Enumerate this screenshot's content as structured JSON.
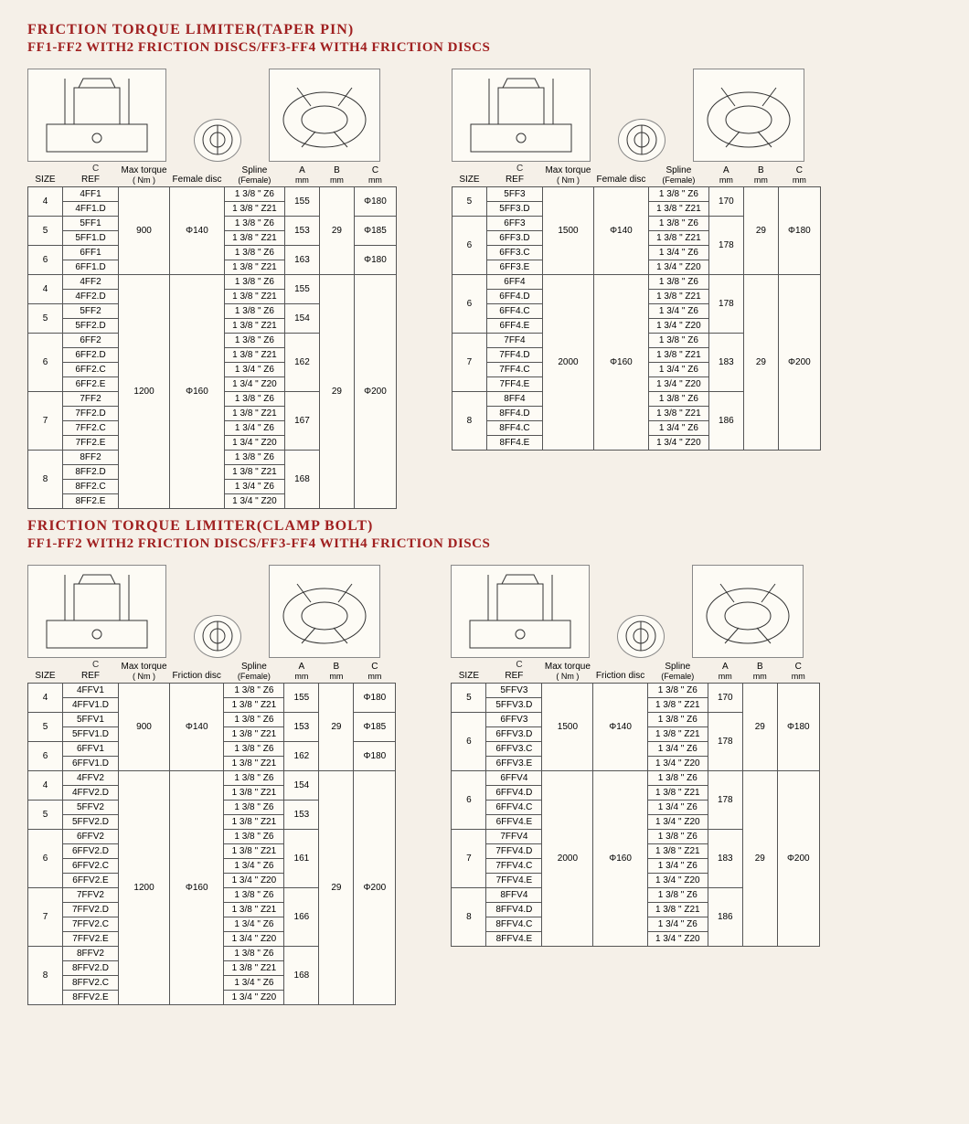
{
  "colors": {
    "heading": "#a02020",
    "paper_bg": "#f5f0e8",
    "cell_bg": "#fdfbf5",
    "border": "#555555",
    "text": "#000000"
  },
  "fonts": {
    "heading": "Georgia serif bold 16px",
    "subtitle": "Georgia serif bold 15px",
    "table": "Arial 10px"
  },
  "sections": [
    {
      "title": "FRICTION TORQUE LIMITER(TAPER PIN)",
      "subtitle": "FF1-FF2 WITH2 FRICTION DISCS/FF3-FF4 WITH4 FRICTION DISCS",
      "left": {
        "columns": [
          "SIZE",
          "REF",
          "Max torque ( Nm )",
          "Female disc",
          "Spline (Female)",
          "A mm",
          "B mm",
          "C mm"
        ],
        "groups": [
          {
            "torque": "900",
            "disc": "Φ140",
            "b": "29",
            "sub": [
              {
                "size": "4",
                "a": "155",
                "c": "Φ180",
                "rows": [
                  [
                    "4FF1",
                    "1 3/8 \" Z6"
                  ],
                  [
                    "4FF1.D",
                    "1 3/8 \" Z21"
                  ]
                ]
              },
              {
                "size": "5",
                "a": "153",
                "c": "Φ185",
                "rows": [
                  [
                    "5FF1",
                    "1 3/8 \" Z6"
                  ],
                  [
                    "5FF1.D",
                    "1 3/8 \" Z21"
                  ]
                ]
              },
              {
                "size": "6",
                "a": "163",
                "c": "Φ180",
                "rows": [
                  [
                    "6FF1",
                    "1 3/8 \" Z6"
                  ],
                  [
                    "6FF1.D",
                    "1 3/8 \" Z21"
                  ]
                ]
              }
            ]
          },
          {
            "torque": "1200",
            "disc": "Φ160",
            "b": "29",
            "c": "Φ200",
            "sub": [
              {
                "size": "4",
                "a": "155",
                "rows": [
                  [
                    "4FF2",
                    "1 3/8 \" Z6"
                  ],
                  [
                    "4FF2.D",
                    "1 3/8 \" Z21"
                  ]
                ]
              },
              {
                "size": "5",
                "a": "154",
                "rows": [
                  [
                    "5FF2",
                    "1 3/8 \" Z6"
                  ],
                  [
                    "5FF2.D",
                    "1 3/8 \" Z21"
                  ]
                ]
              },
              {
                "size": "6",
                "a": "162",
                "rows": [
                  [
                    "6FF2",
                    "1 3/8 \" Z6"
                  ],
                  [
                    "6FF2.D",
                    "1 3/8 \" Z21"
                  ],
                  [
                    "6FF2.C",
                    "1 3/4 \" Z6"
                  ],
                  [
                    "6FF2.E",
                    "1 3/4 \" Z20"
                  ]
                ]
              },
              {
                "size": "7",
                "a": "167",
                "rows": [
                  [
                    "7FF2",
                    "1 3/8 \" Z6"
                  ],
                  [
                    "7FF2.D",
                    "1 3/8 \" Z21"
                  ],
                  [
                    "7FF2.C",
                    "1 3/4 \" Z6"
                  ],
                  [
                    "7FF2.E",
                    "1 3/4 \" Z20"
                  ]
                ]
              },
              {
                "size": "8",
                "a": "168",
                "rows": [
                  [
                    "8FF2",
                    "1 3/8 \" Z6"
                  ],
                  [
                    "8FF2.D",
                    "1 3/8 \" Z21"
                  ],
                  [
                    "8FF2.C",
                    "1 3/4 \" Z6"
                  ],
                  [
                    "8FF2.E",
                    "1 3/4 \" Z20"
                  ]
                ]
              }
            ]
          }
        ]
      },
      "right": {
        "columns": [
          "SIZE",
          "REF",
          "Max torque ( Nm )",
          "Female disc",
          "Spline (Female)",
          "A mm",
          "B mm",
          "C mm"
        ],
        "groups": [
          {
            "torque": "1500",
            "disc": "Φ140",
            "b": "29",
            "c": "Φ180",
            "sub": [
              {
                "size": "5",
                "a": "170",
                "rows": [
                  [
                    "5FF3",
                    "1 3/8 \" Z6"
                  ],
                  [
                    "5FF3.D",
                    "1 3/8 \" Z21"
                  ]
                ]
              },
              {
                "size": "6",
                "a": "178",
                "rows": [
                  [
                    "6FF3",
                    "1 3/8 \" Z6"
                  ],
                  [
                    "6FF3.D",
                    "1 3/8 \" Z21"
                  ],
                  [
                    "6FF3.C",
                    "1 3/4 \" Z6"
                  ],
                  [
                    "6FF3.E",
                    "1 3/4 \" Z20"
                  ]
                ]
              }
            ]
          },
          {
            "torque": "2000",
            "disc": "Φ160",
            "b": "29",
            "c": "Φ200",
            "sub": [
              {
                "size": "6",
                "a": "178",
                "rows": [
                  [
                    "6FF4",
                    "1 3/8 \" Z6"
                  ],
                  [
                    "6FF4.D",
                    "1 3/8 \" Z21"
                  ],
                  [
                    "6FF4.C",
                    "1 3/4 \" Z6"
                  ],
                  [
                    "6FF4.E",
                    "1 3/4 \" Z20"
                  ]
                ]
              },
              {
                "size": "7",
                "a": "183",
                "rows": [
                  [
                    "7FF4",
                    "1 3/8 \" Z6"
                  ],
                  [
                    "7FF4.D",
                    "1 3/8 \" Z21"
                  ],
                  [
                    "7FF4.C",
                    "1 3/4 \" Z6"
                  ],
                  [
                    "7FF4.E",
                    "1 3/4 \" Z20"
                  ]
                ]
              },
              {
                "size": "8",
                "a": "186",
                "rows": [
                  [
                    "8FF4",
                    "1 3/8 \" Z6"
                  ],
                  [
                    "8FF4.D",
                    "1 3/8 \" Z21"
                  ],
                  [
                    "8FF4.C",
                    "1 3/4 \" Z6"
                  ],
                  [
                    "8FF4.E",
                    "1 3/4 \" Z20"
                  ]
                ]
              }
            ]
          }
        ]
      }
    },
    {
      "title": "FRICTION TORQUE LIMITER(CLAMP BOLT)",
      "subtitle": "FF1-FF2 WITH2 FRICTION DISCS/FF3-FF4 WITH4 FRICTION DISCS",
      "left": {
        "columns": [
          "SIZE",
          "REF",
          "Max torque ( Nm )",
          "Friction disc",
          "Spline (Female)",
          "A mm",
          "B mm",
          "C mm"
        ],
        "groups": [
          {
            "torque": "900",
            "disc": "Φ140",
            "b": "29",
            "sub": [
              {
                "size": "4",
                "a": "155",
                "c": "Φ180",
                "rows": [
                  [
                    "4FFV1",
                    "1 3/8 \" Z6"
                  ],
                  [
                    "4FFV1.D",
                    "1 3/8 \" Z21"
                  ]
                ]
              },
              {
                "size": "5",
                "a": "153",
                "c": "Φ185",
                "rows": [
                  [
                    "5FFV1",
                    "1 3/8 \" Z6"
                  ],
                  [
                    "5FFV1.D",
                    "1 3/8 \" Z21"
                  ]
                ]
              },
              {
                "size": "6",
                "a": "162",
                "c": "Φ180",
                "rows": [
                  [
                    "6FFV1",
                    "1 3/8 \" Z6"
                  ],
                  [
                    "6FFV1.D",
                    "1 3/8 \" Z21"
                  ]
                ]
              }
            ]
          },
          {
            "torque": "1200",
            "disc": "Φ160",
            "b": "29",
            "c": "Φ200",
            "sub": [
              {
                "size": "4",
                "a": "154",
                "rows": [
                  [
                    "4FFV2",
                    "1 3/8 \" Z6"
                  ],
                  [
                    "4FFV2.D",
                    "1 3/8 \" Z21"
                  ]
                ]
              },
              {
                "size": "5",
                "a": "153",
                "rows": [
                  [
                    "5FFV2",
                    "1 3/8 \" Z6"
                  ],
                  [
                    "5FFV2.D",
                    "1 3/8 \" Z21"
                  ]
                ]
              },
              {
                "size": "6",
                "a": "161",
                "rows": [
                  [
                    "6FFV2",
                    "1 3/8 \" Z6"
                  ],
                  [
                    "6FFV2.D",
                    "1 3/8 \" Z21"
                  ],
                  [
                    "6FFV2.C",
                    "1 3/4 \" Z6"
                  ],
                  [
                    "6FFV2.E",
                    "1 3/4 \" Z20"
                  ]
                ]
              },
              {
                "size": "7",
                "a": "166",
                "rows": [
                  [
                    "7FFV2",
                    "1 3/8 \" Z6"
                  ],
                  [
                    "7FFV2.D",
                    "1 3/8 \" Z21"
                  ],
                  [
                    "7FFV2.C",
                    "1 3/4 \" Z6"
                  ],
                  [
                    "7FFV2.E",
                    "1 3/4 \" Z20"
                  ]
                ]
              },
              {
                "size": "8",
                "a": "168",
                "rows": [
                  [
                    "8FFV2",
                    "1 3/8 \" Z6"
                  ],
                  [
                    "8FFV2.D",
                    "1 3/8 \" Z21"
                  ],
                  [
                    "8FFV2.C",
                    "1 3/4 \" Z6"
                  ],
                  [
                    "8FFV2.E",
                    "1 3/4 \" Z20"
                  ]
                ]
              }
            ]
          }
        ]
      },
      "right": {
        "columns": [
          "SIZE",
          "REF",
          "Max torque ( Nm )",
          "Friction disc",
          "Spline (Female)",
          "A mm",
          "B mm",
          "C mm"
        ],
        "groups": [
          {
            "torque": "1500",
            "disc": "Φ140",
            "b": "29",
            "c": "Φ180",
            "sub": [
              {
                "size": "5",
                "a": "170",
                "rows": [
                  [
                    "5FFV3",
                    "1 3/8 \" Z6"
                  ],
                  [
                    "5FFV3.D",
                    "1 3/8 \" Z21"
                  ]
                ]
              },
              {
                "size": "6",
                "a": "178",
                "rows": [
                  [
                    "6FFV3",
                    "1 3/8 \" Z6"
                  ],
                  [
                    "6FFV3.D",
                    "1 3/8 \" Z21"
                  ],
                  [
                    "6FFV3.C",
                    "1 3/4 \" Z6"
                  ],
                  [
                    "6FFV3.E",
                    "1 3/4 \" Z20"
                  ]
                ]
              }
            ]
          },
          {
            "torque": "2000",
            "disc": "Φ160",
            "b": "29",
            "c": "Φ200",
            "sub": [
              {
                "size": "6",
                "a": "178",
                "rows": [
                  [
                    "6FFV4",
                    "1 3/8 \" Z6"
                  ],
                  [
                    "6FFV4.D",
                    "1 3/8 \" Z21"
                  ],
                  [
                    "6FFV4.C",
                    "1 3/4 \" Z6"
                  ],
                  [
                    "6FFV4.E",
                    "1 3/4 \" Z20"
                  ]
                ]
              },
              {
                "size": "7",
                "a": "183",
                "rows": [
                  [
                    "7FFV4",
                    "1 3/8 \" Z6"
                  ],
                  [
                    "7FFV4.D",
                    "1 3/8 \" Z21"
                  ],
                  [
                    "7FFV4.C",
                    "1 3/4 \" Z6"
                  ],
                  [
                    "7FFV4.E",
                    "1 3/4 \" Z20"
                  ]
                ]
              },
              {
                "size": "8",
                "a": "186",
                "rows": [
                  [
                    "8FFV4",
                    "1 3/8 \" Z6"
                  ],
                  [
                    "8FFV4.D",
                    "1 3/8 \" Z21"
                  ],
                  [
                    "8FFV4.C",
                    "1 3/4 \" Z6"
                  ],
                  [
                    "8FFV4.E",
                    "1 3/4 \" Z20"
                  ]
                ]
              }
            ]
          }
        ]
      }
    }
  ],
  "diagram_labels": {
    "a": "A",
    "b": "B",
    "c": "C"
  }
}
